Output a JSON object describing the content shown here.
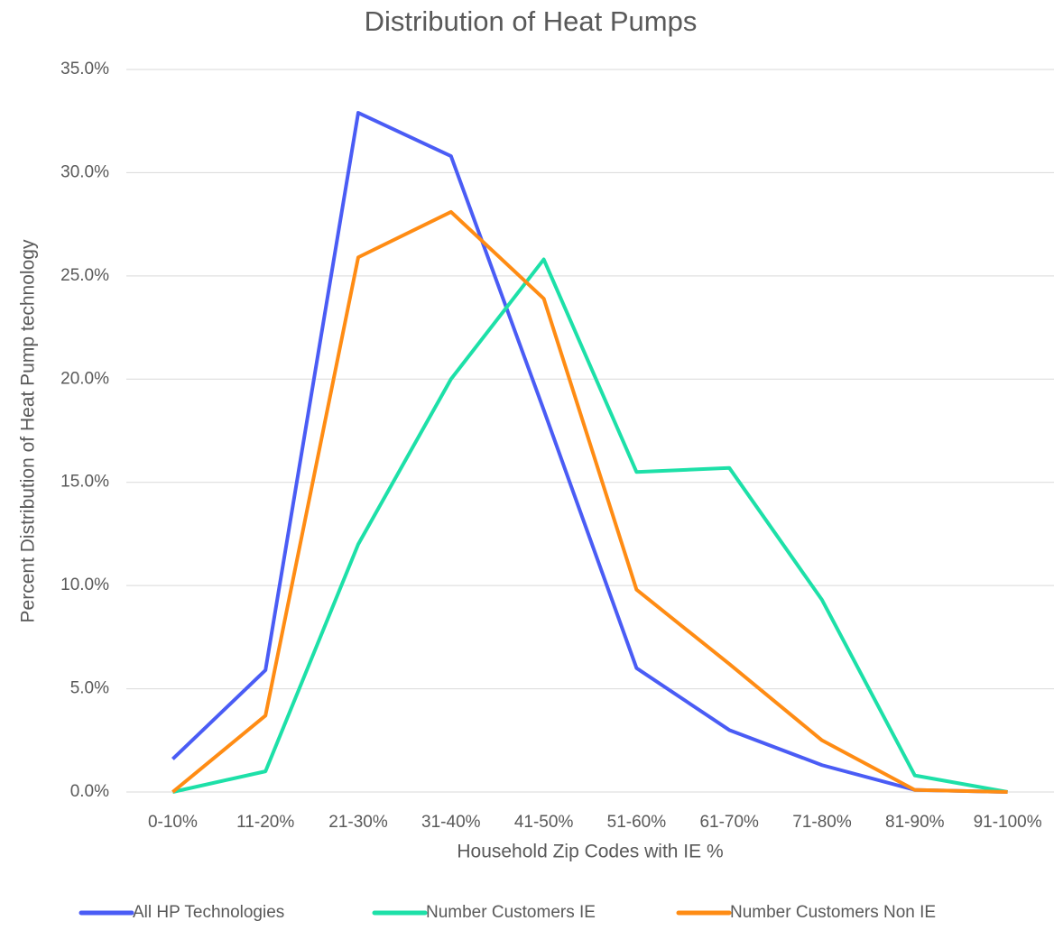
{
  "chart_data": {
    "type": "line",
    "title": "Distribution of Heat Pumps",
    "x_label": "Household Zip Codes with IE %",
    "y_label": "Percent Distribution of Heat Pump technology",
    "categories": [
      "0-10%",
      "11-20%",
      "21-30%",
      "31-40%",
      "41-50%",
      "51-60%",
      "61-70%",
      "71-80%",
      "81-90%",
      "91-100%"
    ],
    "series": [
      {
        "name": "All HP Technologies",
        "color": "#4a5cf5",
        "values": [
          1.6,
          5.9,
          32.9,
          30.8,
          18.5,
          6.0,
          3.0,
          1.3,
          0.1,
          0
        ]
      },
      {
        "name": "Number Customers IE",
        "color": "#1de0a8",
        "values": [
          0,
          1.0,
          12.0,
          20.0,
          25.8,
          15.5,
          15.7,
          9.3,
          0.8,
          0
        ]
      },
      {
        "name": "Number Customers Non IE",
        "color": "#ff8c14",
        "values": [
          0,
          3.7,
          25.9,
          28.1,
          23.9,
          9.8,
          6.2,
          2.5,
          0.1,
          0
        ]
      }
    ],
    "ylim": [
      0,
      35
    ],
    "yticks": [
      {
        "value": 0,
        "label": "0.0%"
      },
      {
        "value": 5,
        "label": "5.0%"
      },
      {
        "value": 10,
        "label": "10.0%"
      },
      {
        "value": 15,
        "label": "15.0%"
      },
      {
        "value": 20,
        "label": "20.0%"
      },
      {
        "value": 25,
        "label": "25.0%"
      },
      {
        "value": 30,
        "label": "30.0%"
      },
      {
        "value": 35,
        "label": "35.0%"
      }
    ],
    "grid": true,
    "legend": "bottom"
  }
}
